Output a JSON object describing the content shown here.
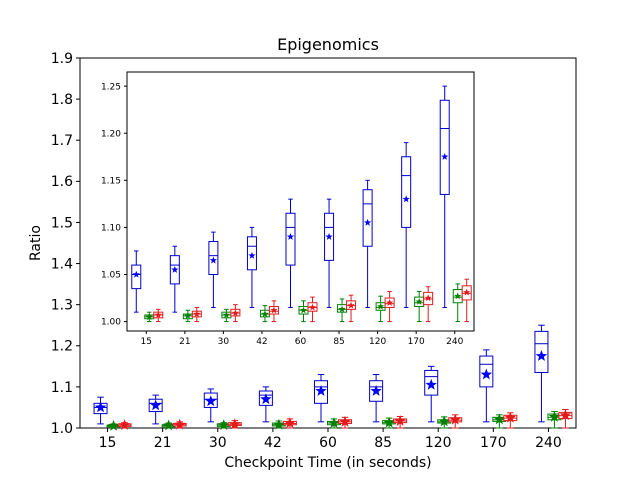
{
  "chart_data": [
    {
      "type": "box",
      "title": "Epigenomics",
      "xlabel": "Checkpoint Time (in seconds)",
      "ylabel": "Ratio",
      "ylim": [
        1.0,
        1.9
      ],
      "yticks": [
        "1.0",
        "1.1",
        "1.2",
        "1.3",
        "1.4",
        "1.5",
        "1.6",
        "1.7",
        "1.8",
        "1.9"
      ],
      "categories": [
        "15",
        "21",
        "30",
        "42",
        "60",
        "85",
        "120",
        "170",
        "240"
      ],
      "grid": false,
      "series": [
        {
          "color": "#0000cc",
          "marker_color": "#0000ff",
          "boxes": [
            {
              "whislo": 1.01,
              "q1": 1.035,
              "med": 1.05,
              "q3": 1.06,
              "whishi": 1.075,
              "mean": 1.05
            },
            {
              "whislo": 1.01,
              "q1": 1.04,
              "med": 1.06,
              "q3": 1.07,
              "whishi": 1.08,
              "mean": 1.055
            },
            {
              "whislo": 1.015,
              "q1": 1.05,
              "med": 1.07,
              "q3": 1.085,
              "whishi": 1.095,
              "mean": 1.065
            },
            {
              "whislo": 1.015,
              "q1": 1.055,
              "med": 1.08,
              "q3": 1.09,
              "whishi": 1.1,
              "mean": 1.07
            },
            {
              "whislo": 1.015,
              "q1": 1.06,
              "med": 1.1,
              "q3": 1.115,
              "whishi": 1.13,
              "mean": 1.09
            },
            {
              "whislo": 1.015,
              "q1": 1.065,
              "med": 1.1,
              "q3": 1.115,
              "whishi": 1.13,
              "mean": 1.09
            },
            {
              "whislo": 1.015,
              "q1": 1.08,
              "med": 1.125,
              "q3": 1.14,
              "whishi": 1.15,
              "mean": 1.105
            },
            {
              "whislo": 1.015,
              "q1": 1.1,
              "med": 1.155,
              "q3": 1.175,
              "whishi": 1.19,
              "mean": 1.13
            },
            {
              "whislo": 1.015,
              "q1": 1.135,
              "med": 1.205,
              "q3": 1.235,
              "whishi": 1.25,
              "mean": 1.175
            }
          ]
        },
        {
          "color": "#008000",
          "marker_color": "#008000",
          "boxes": [
            {
              "whislo": 1.0,
              "q1": 1.003,
              "med": 1.005,
              "q3": 1.007,
              "whishi": 1.01,
              "mean": 1.005
            },
            {
              "whislo": 1.0,
              "q1": 1.003,
              "med": 1.006,
              "q3": 1.008,
              "whishi": 1.012,
              "mean": 1.006
            },
            {
              "whislo": 1.0,
              "q1": 1.004,
              "med": 1.007,
              "q3": 1.01,
              "whishi": 1.013,
              "mean": 1.007
            },
            {
              "whislo": 1.0,
              "q1": 1.005,
              "med": 1.008,
              "q3": 1.012,
              "whishi": 1.017,
              "mean": 1.008
            },
            {
              "whislo": 1.0,
              "q1": 1.008,
              "med": 1.012,
              "q3": 1.016,
              "whishi": 1.022,
              "mean": 1.012
            },
            {
              "whislo": 1.0,
              "q1": 1.01,
              "med": 1.013,
              "q3": 1.018,
              "whishi": 1.024,
              "mean": 1.013
            },
            {
              "whislo": 1.0,
              "q1": 1.012,
              "med": 1.015,
              "q3": 1.02,
              "whishi": 1.027,
              "mean": 1.016
            },
            {
              "whislo": 1.0,
              "q1": 1.016,
              "med": 1.02,
              "q3": 1.026,
              "whishi": 1.032,
              "mean": 1.021
            },
            {
              "whislo": 1.0,
              "q1": 1.02,
              "med": 1.026,
              "q3": 1.034,
              "whishi": 1.04,
              "mean": 1.027
            }
          ]
        },
        {
          "color": "#e31a1c",
          "marker_color": "#e31a1c",
          "boxes": [
            {
              "whislo": 1.0,
              "q1": 1.004,
              "med": 1.007,
              "q3": 1.01,
              "whishi": 1.013,
              "mean": 1.007
            },
            {
              "whislo": 1.0,
              "q1": 1.005,
              "med": 1.008,
              "q3": 1.011,
              "whishi": 1.015,
              "mean": 1.008
            },
            {
              "whislo": 1.0,
              "q1": 1.006,
              "med": 1.009,
              "q3": 1.013,
              "whishi": 1.018,
              "mean": 1.009
            },
            {
              "whislo": 1.0,
              "q1": 1.008,
              "med": 1.011,
              "q3": 1.016,
              "whishi": 1.022,
              "mean": 1.012
            },
            {
              "whislo": 1.0,
              "q1": 1.011,
              "med": 1.015,
              "q3": 1.02,
              "whishi": 1.026,
              "mean": 1.015
            },
            {
              "whislo": 1.0,
              "q1": 1.013,
              "med": 1.017,
              "q3": 1.022,
              "whishi": 1.028,
              "mean": 1.017
            },
            {
              "whislo": 1.0,
              "q1": 1.015,
              "med": 1.019,
              "q3": 1.025,
              "whishi": 1.032,
              "mean": 1.02
            },
            {
              "whislo": 1.0,
              "q1": 1.018,
              "med": 1.024,
              "q3": 1.031,
              "whishi": 1.037,
              "mean": 1.025
            },
            {
              "whislo": 1.0,
              "q1": 1.023,
              "med": 1.03,
              "q3": 1.038,
              "whishi": 1.045,
              "mean": 1.031
            }
          ]
        }
      ]
    },
    {
      "type": "box",
      "inset": true,
      "ylim": [
        0.99,
        1.265
      ],
      "yticks": [
        "1.00",
        "1.05",
        "1.10",
        "1.15",
        "1.20",
        "1.25"
      ],
      "categories": [
        "15",
        "21",
        "30",
        "42",
        "60",
        "85",
        "120",
        "170",
        "240"
      ],
      "grid": false,
      "series_ref": "same as main chart"
    }
  ]
}
